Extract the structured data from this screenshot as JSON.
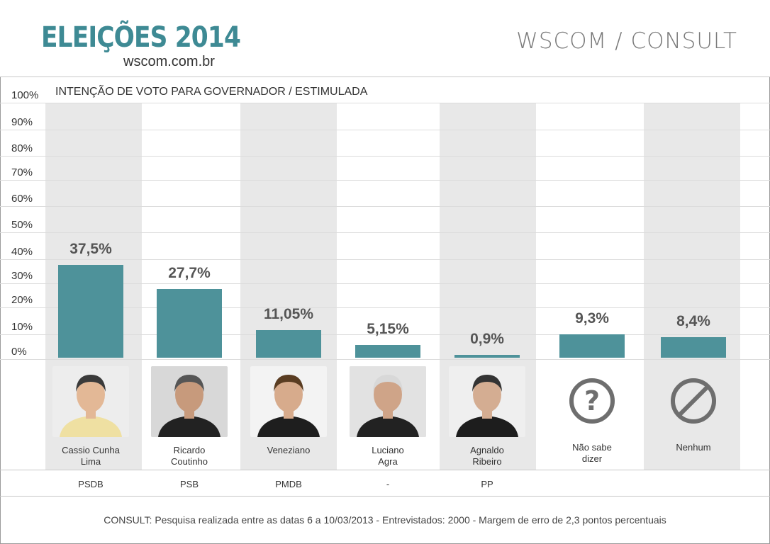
{
  "header": {
    "title": "ELEIÇÕES 2014",
    "subtitle": "wscom.com.br",
    "source": "WSCOM / CONSULT"
  },
  "chart_data": {
    "type": "bar",
    "title": "INTENÇÃO DE VOTO PARA GOVERNADOR / ESTIMULADA",
    "yticks": [
      "100%",
      "90%",
      "80%",
      "70%",
      "60%",
      "50%",
      "40%",
      "30%",
      "20%",
      "10%",
      "0%"
    ],
    "ylim": [
      0,
      100
    ],
    "grid": true,
    "categories": [
      "Cassio Cunha Lima",
      "Ricardo Coutinho",
      "Veneziano",
      "Luciano Agra",
      "Agnaldo Ribeiro",
      "Não sabe dizer",
      "Nenhum"
    ],
    "values": [
      37.5,
      27.7,
      11.05,
      5.15,
      0.9,
      9.3,
      8.4
    ],
    "value_labels": [
      "37,5%",
      "27,7%",
      "11,05%",
      "5,15%",
      "0,9%",
      "9,3%",
      "8,4%"
    ],
    "parties": [
      "PSDB",
      "PSB",
      "PMDB",
      "-",
      "PP",
      "",
      ""
    ],
    "bar_color": "#4e929a"
  },
  "candidates": [
    {
      "name_line1": "Cassio Cunha",
      "name_line2": "Lima",
      "icon": "candidate-photo"
    },
    {
      "name_line1": "Ricardo",
      "name_line2": "Coutinho",
      "icon": "candidate-photo"
    },
    {
      "name_line1": "Veneziano",
      "name_line2": "",
      "icon": "candidate-photo"
    },
    {
      "name_line1": "Luciano",
      "name_line2": "Agra",
      "icon": "candidate-photo"
    },
    {
      "name_line1": "Agnaldo",
      "name_line2": "Ribeiro",
      "icon": "candidate-photo"
    },
    {
      "name_line1": "Não sabe",
      "name_line2": "dizer",
      "icon": "question-icon"
    },
    {
      "name_line1": "Nenhum",
      "name_line2": "",
      "icon": "prohibited-icon"
    }
  ],
  "footer": {
    "note": "CONSULT: Pesquisa realizada entre as datas 6 a 10/03/2013 - Entrevistados: 2000 - Margem de erro de 2,3 pontos percentuais"
  },
  "colors": {
    "accent": "#3e8a94",
    "bar": "#4e929a",
    "stripe": "#e8e8e8",
    "icon": "#6e6e6e"
  }
}
